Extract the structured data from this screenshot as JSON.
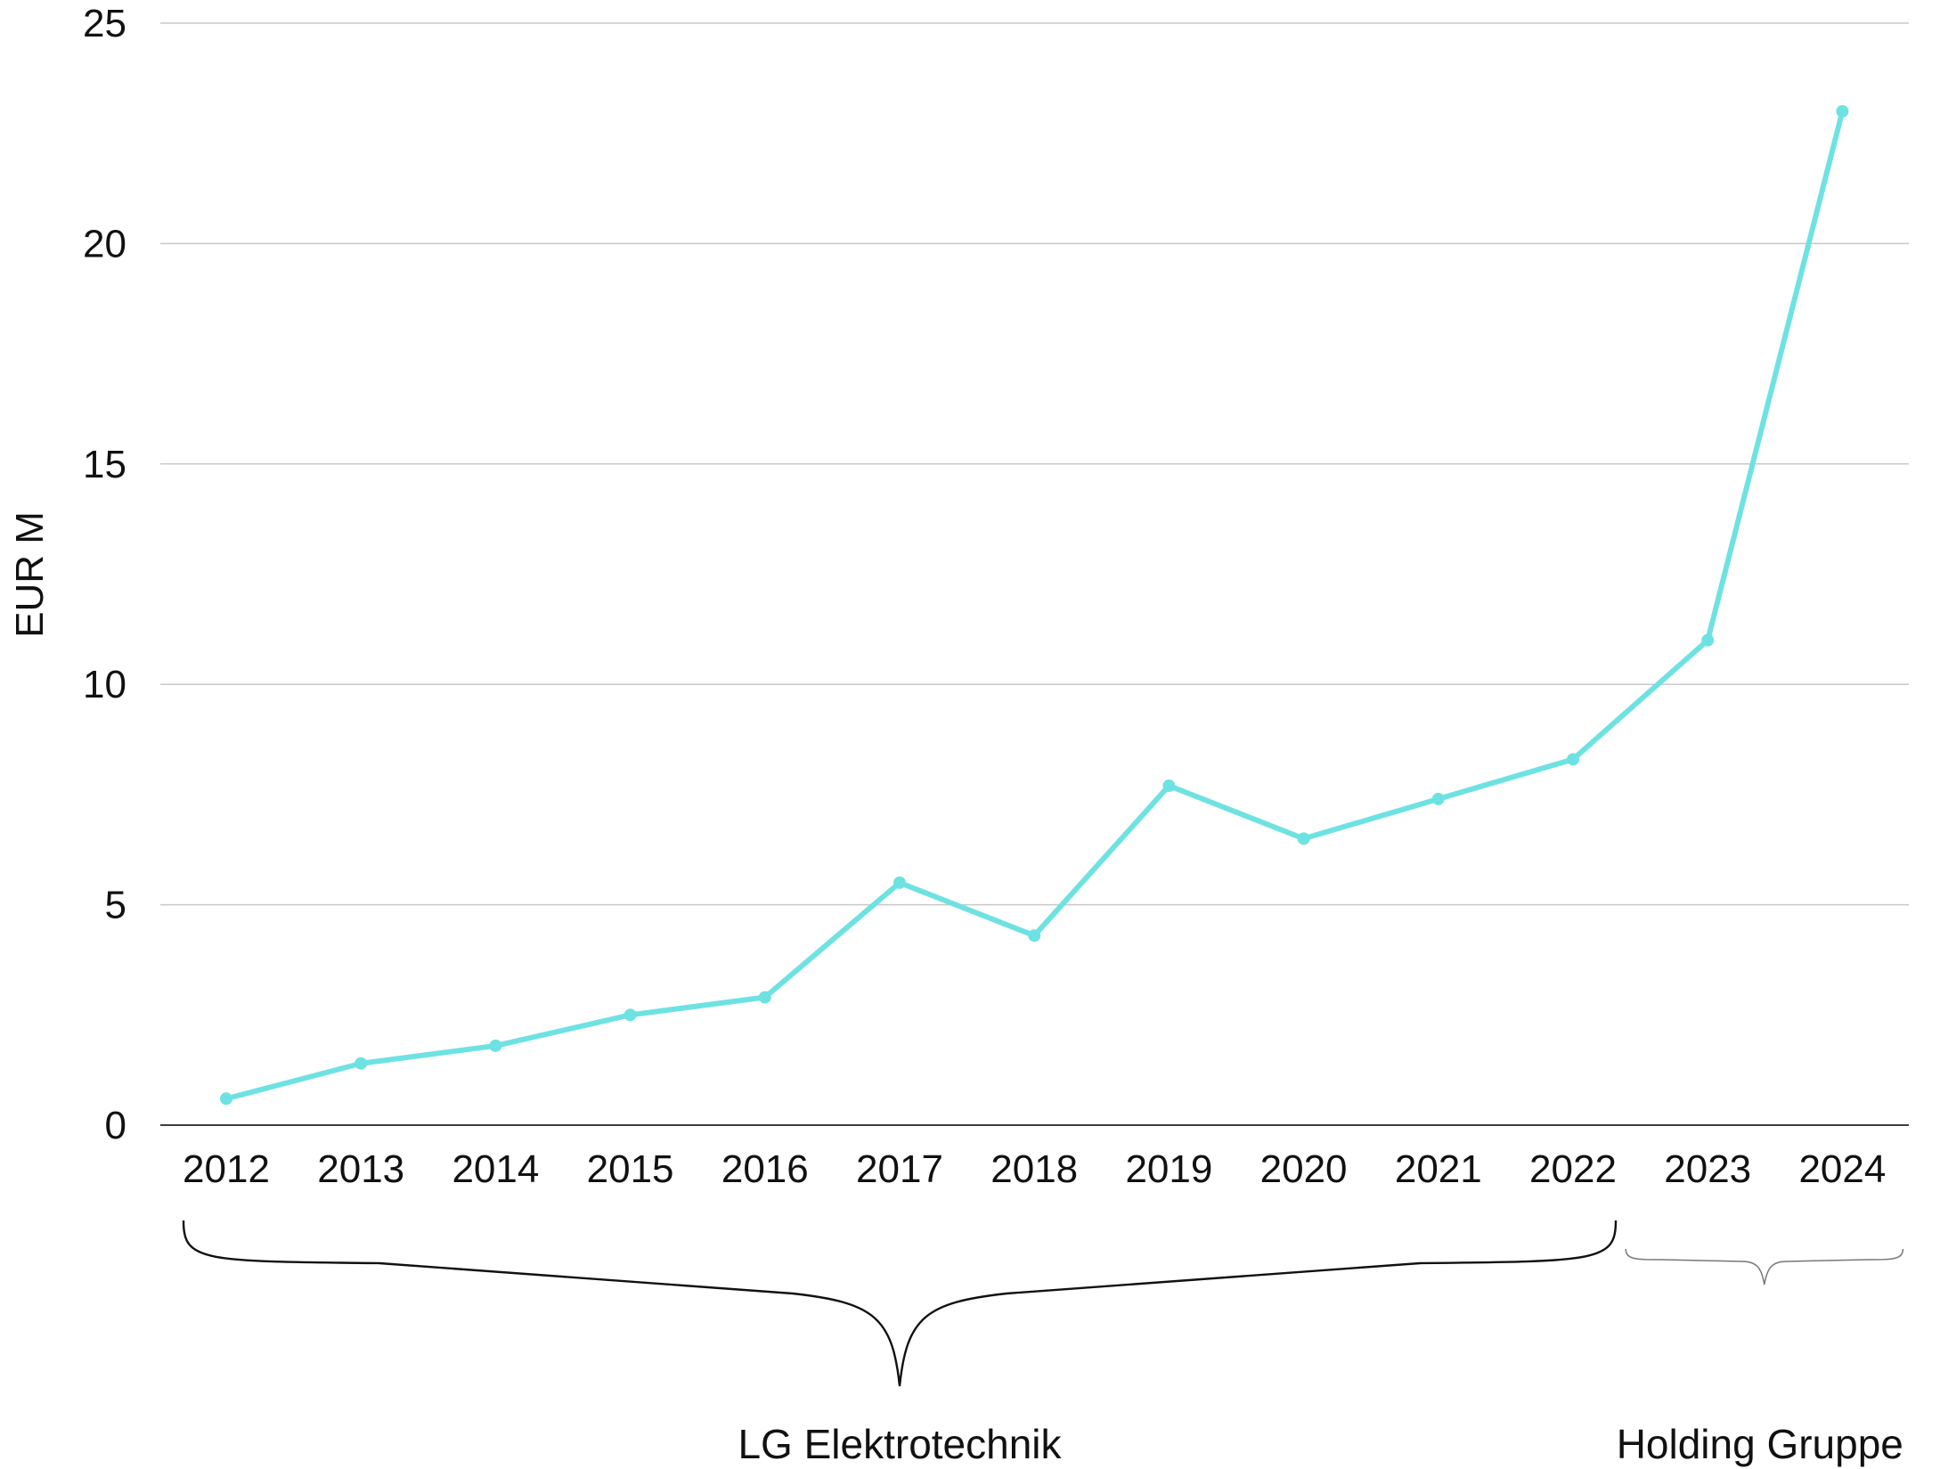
{
  "chart_data": {
    "type": "line",
    "title": "",
    "xlabel": "",
    "ylabel": "EUR M",
    "ylim": [
      0,
      25
    ],
    "yticks": [
      0,
      5,
      10,
      15,
      20,
      25
    ],
    "grid": true,
    "categories": [
      "2012",
      "2013",
      "2014",
      "2015",
      "2016",
      "2017",
      "2018",
      "2019",
      "2020",
      "2021",
      "2022",
      "2023",
      "2024"
    ],
    "series": [
      {
        "values": [
          0.6,
          1.4,
          1.8,
          2.5,
          2.9,
          5.5,
          4.3,
          7.7,
          6.5,
          7.4,
          8.3,
          11.0,
          23.0
        ],
        "color": "#6ee2e2"
      }
    ],
    "annotations": [
      {
        "label": "LG Elektrotechnik",
        "from": "2012",
        "to": "2022"
      },
      {
        "label": "Holding Gruppe",
        "from": "2023",
        "to": "2024"
      }
    ]
  }
}
